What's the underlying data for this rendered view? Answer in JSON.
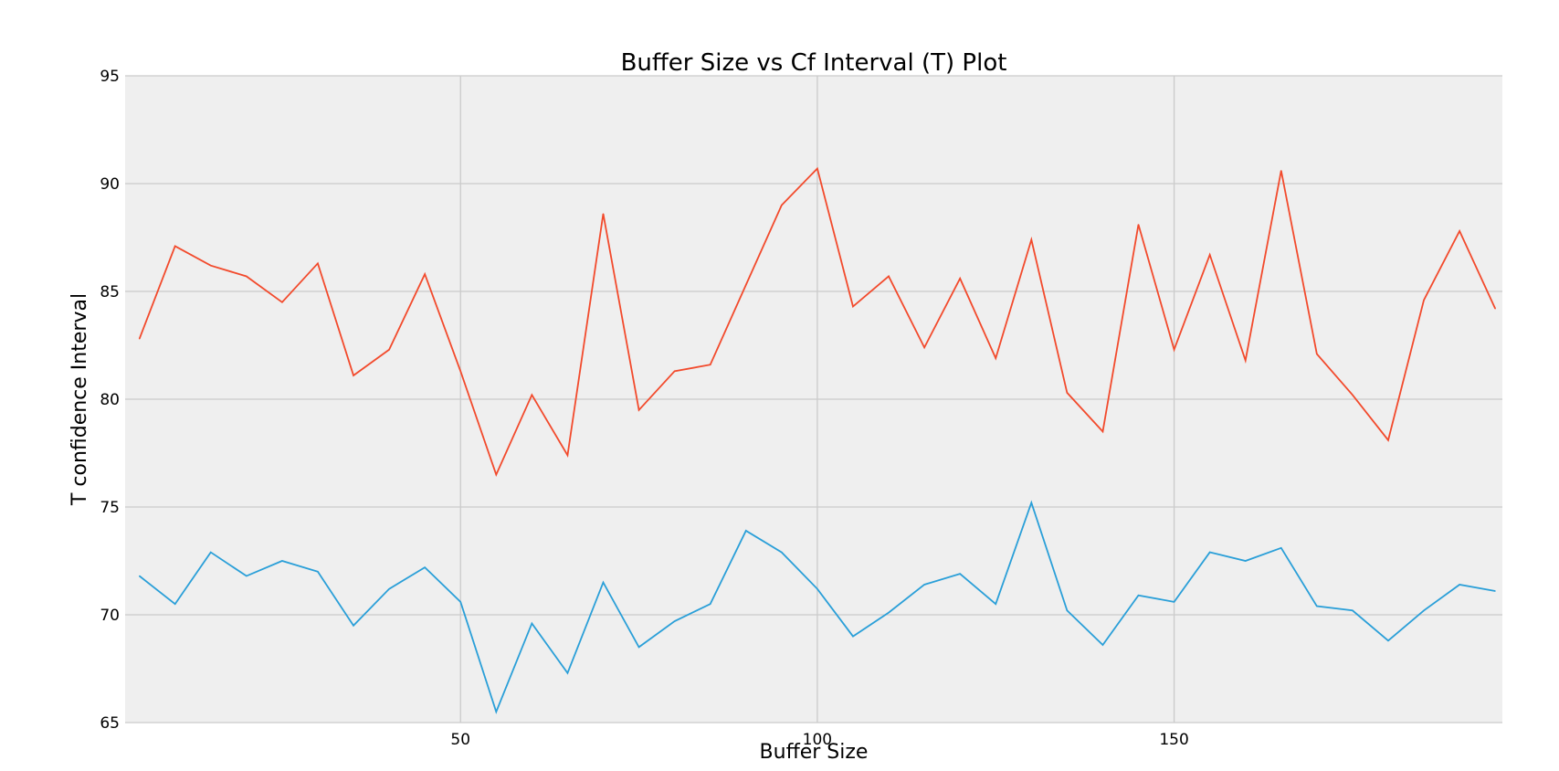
{
  "colors": {
    "background": "#ffffff",
    "plot_background": "#efefef",
    "grid": "#cbcbcb",
    "series_1": "#f24a2c",
    "series_2": "#2a9fd8"
  },
  "chart_data": {
    "type": "line",
    "title": "Buffer Size vs Cf Interval (T) Plot",
    "xlabel": "Buffer Size",
    "ylabel": "T confidence Interval",
    "xlim": [
      3,
      196
    ],
    "ylim": [
      65,
      95
    ],
    "xticks": [
      50,
      100,
      150
    ],
    "yticks": [
      65,
      70,
      75,
      80,
      85,
      90,
      95
    ],
    "grid": true,
    "legend": "none",
    "x": [
      5,
      10,
      15,
      20,
      25,
      30,
      35,
      40,
      45,
      50,
      55,
      60,
      65,
      70,
      75,
      80,
      85,
      90,
      95,
      100,
      105,
      110,
      115,
      120,
      125,
      130,
      135,
      140,
      145,
      150,
      155,
      160,
      165,
      170,
      175,
      180,
      185,
      190,
      195
    ],
    "series": [
      {
        "color": "#f24a2c",
        "values": [
          82.8,
          87.1,
          86.2,
          85.7,
          84.5,
          86.3,
          81.1,
          82.3,
          85.8,
          81.3,
          76.5,
          80.2,
          77.4,
          88.6,
          79.5,
          81.3,
          81.6,
          85.3,
          89.0,
          90.7,
          84.3,
          85.7,
          82.4,
          85.6,
          81.9,
          87.4,
          80.3,
          78.5,
          88.1,
          82.3,
          86.7,
          81.8,
          90.6,
          82.1,
          80.2,
          78.1,
          84.6,
          87.8,
          84.2
        ]
      },
      {
        "color": "#2a9fd8",
        "values": [
          71.8,
          70.5,
          72.9,
          71.8,
          72.5,
          72.0,
          69.5,
          71.2,
          72.2,
          70.6,
          65.5,
          69.6,
          67.3,
          71.5,
          68.5,
          69.7,
          70.5,
          73.9,
          72.9,
          71.2,
          69.0,
          70.1,
          71.4,
          71.9,
          70.5,
          75.2,
          70.2,
          68.6,
          70.9,
          70.6,
          72.9,
          72.5,
          73.1,
          70.4,
          70.2,
          68.8,
          70.2,
          71.4,
          71.1
        ]
      }
    ]
  }
}
